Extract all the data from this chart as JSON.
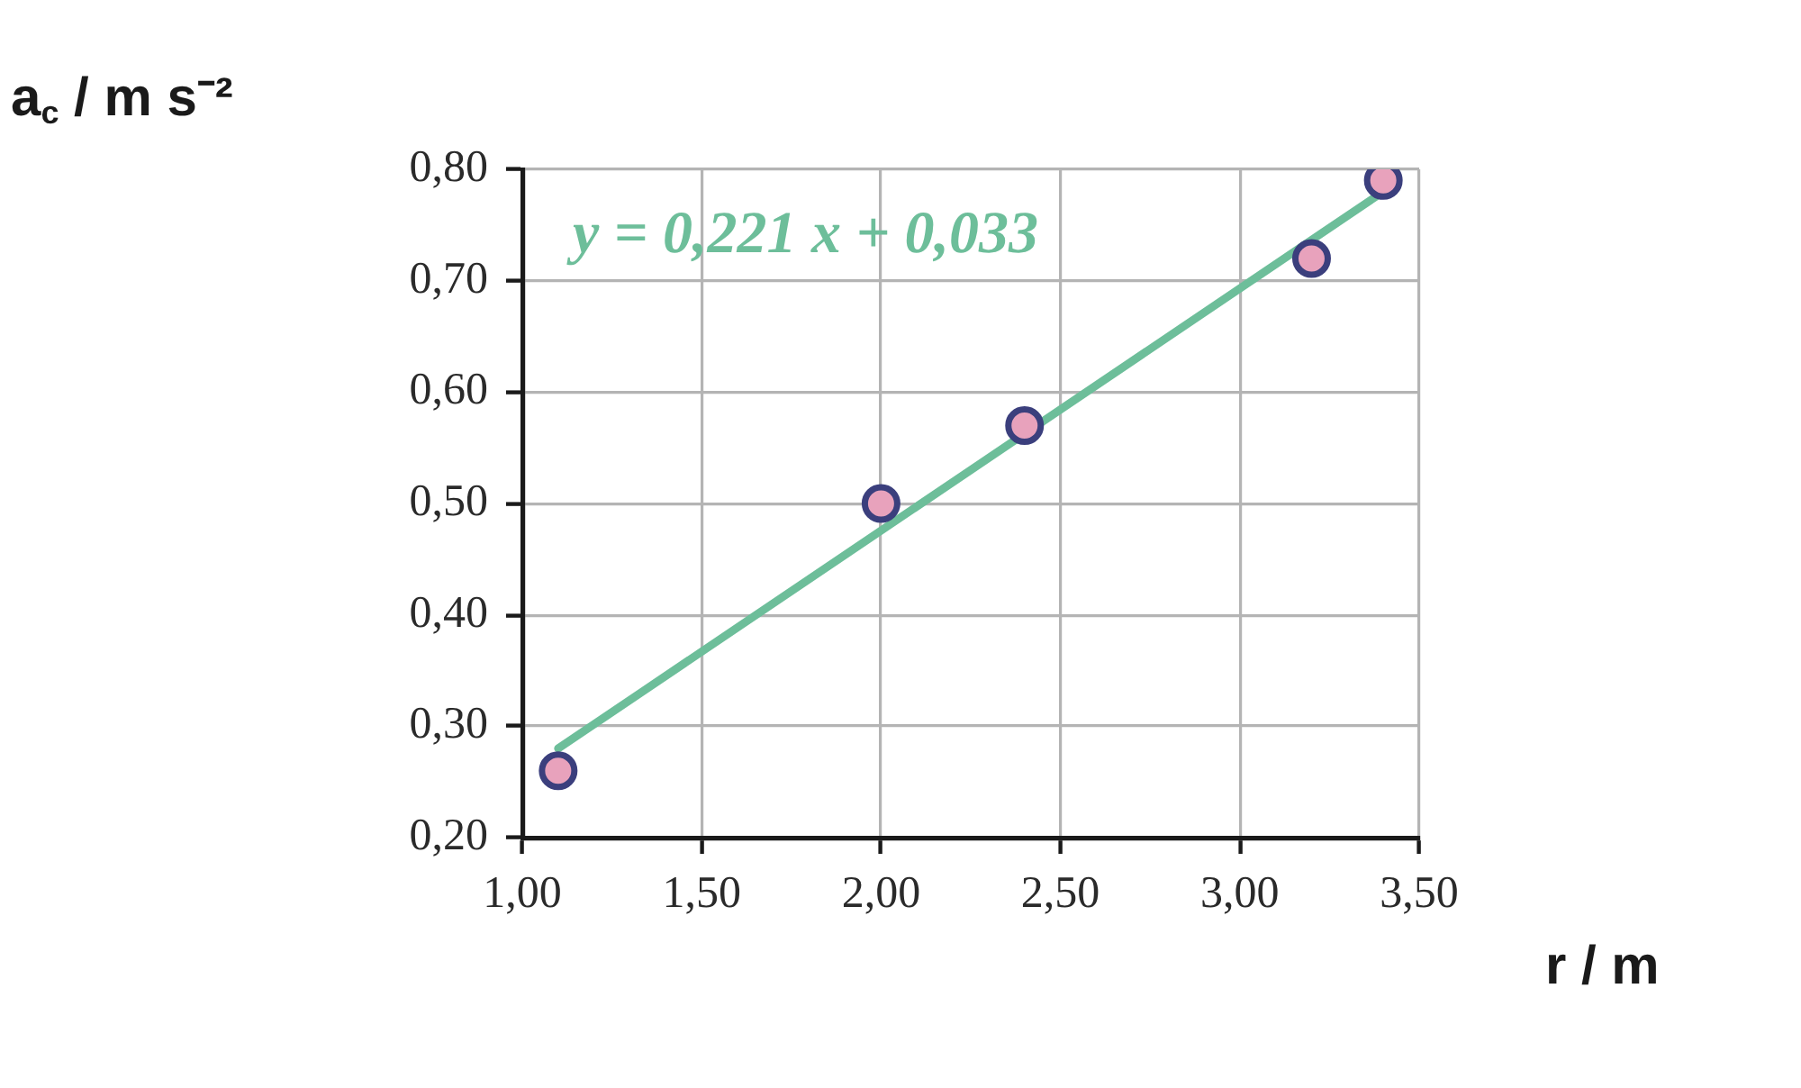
{
  "chart_data": {
    "type": "scatter",
    "xlabel": "r / m",
    "ylabel": "a$_{c}$ / m s⁻²",
    "annotations": [
      "y = 0,221 x + 0,033"
    ],
    "xlim": [
      1.0,
      3.5
    ],
    "ylim": [
      0.2,
      0.8
    ],
    "xticks": [
      {
        "value": 1.0,
        "label": "1,00"
      },
      {
        "value": 1.5,
        "label": "1,50"
      },
      {
        "value": 2.0,
        "label": "2,00"
      },
      {
        "value": 2.5,
        "label": "2,50"
      },
      {
        "value": 3.0,
        "label": "3,00"
      },
      {
        "value": 3.5,
        "label": "3,50"
      }
    ],
    "yticks": [
      {
        "value": 0.2,
        "label": "0,20"
      },
      {
        "value": 0.3,
        "label": "0,30"
      },
      {
        "value": 0.4,
        "label": "0,40"
      },
      {
        "value": 0.5,
        "label": "0,50"
      },
      {
        "value": 0.6,
        "label": "0,60"
      },
      {
        "value": 0.7,
        "label": "0,70"
      },
      {
        "value": 0.8,
        "label": "0,80"
      }
    ],
    "grid": true,
    "series": [
      {
        "color": "#e8a2bc",
        "marker": "circle",
        "x": [
          1.1,
          2.0,
          2.4,
          3.2,
          3.4
        ],
        "values": [
          0.26,
          0.5,
          0.57,
          0.72,
          0.79
        ]
      },
      {
        "type": "line",
        "marker": "none",
        "color": "#6dbe9a",
        "x": [
          1.1,
          3.4
        ],
        "values": [
          0.28,
          0.78
        ]
      }
    ]
  }
}
